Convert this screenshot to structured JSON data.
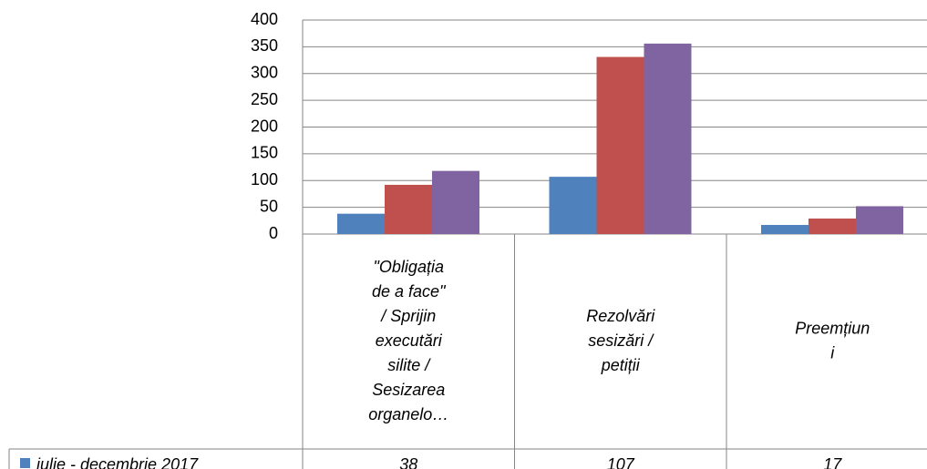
{
  "chart_data": {
    "type": "bar",
    "categories": [
      "\"Obligația\nde a face\"\n/ Sprijin\nexecutări\nsilite /\nSesizarea\norganelo…",
      "Rezolvări\nsesizări /\npetiții",
      "Preemțiun\ni"
    ],
    "series": [
      {
        "name": "iulie - decembrie 2017",
        "color": "#4f81bd",
        "values": [
          38,
          107,
          17
        ]
      },
      {
        "color": "#c0504d",
        "values": [
          92,
          331,
          29
        ]
      },
      {
        "color": "#8064a2",
        "values": [
          118,
          356,
          52
        ]
      }
    ],
    "ylim": [
      0,
      400
    ],
    "yticks": [
      0,
      50,
      100,
      150,
      200,
      250,
      300,
      350,
      400
    ],
    "grid": true
  }
}
